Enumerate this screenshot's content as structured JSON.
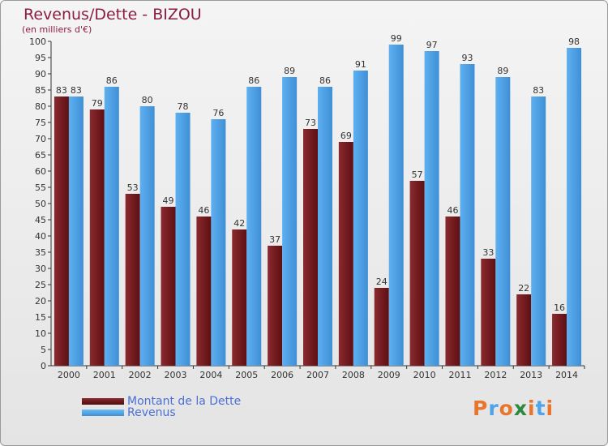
{
  "title": "Revenus/Dette - BIZOU",
  "subtitle": "(en milliers d'€)",
  "colors": {
    "dette": "#7b1a1e",
    "revenus": "#4fa3e8",
    "title": "#8b1e3f",
    "legend_text": "#4a6fd8"
  },
  "legend": [
    {
      "label": "Montant de la Dette",
      "color": "#6b1114"
    },
    {
      "label": "Revenus",
      "color": "#4fa3e8"
    }
  ],
  "brand": {
    "letters": [
      "P",
      "r",
      "o",
      "x",
      "i",
      "t",
      "i"
    ],
    "colors": [
      "#e8752b",
      "#4fa3e8",
      "#e8752b",
      "#2b8a3e",
      "#e8752b",
      "#4fa3e8",
      "#e8752b"
    ]
  },
  "chart_data": {
    "type": "bar",
    "categories": [
      "2000",
      "2001",
      "2002",
      "2003",
      "2004",
      "2005",
      "2006",
      "2007",
      "2008",
      "2009",
      "2010",
      "2011",
      "2012",
      "2013",
      "2014"
    ],
    "series": [
      {
        "name": "Montant de la Dette",
        "values": [
          83,
          79,
          53,
          49,
          46,
          42,
          37,
          73,
          69,
          24,
          57,
          46,
          33,
          22,
          16
        ]
      },
      {
        "name": "Revenus",
        "values": [
          83,
          86,
          80,
          78,
          76,
          86,
          89,
          86,
          91,
          99,
          97,
          93,
          89,
          83,
          98
        ]
      }
    ],
    "ylim": [
      0,
      100
    ],
    "ytick_step": 5,
    "grid": false,
    "data_labels": true,
    "legend_position": "bottom-left"
  }
}
